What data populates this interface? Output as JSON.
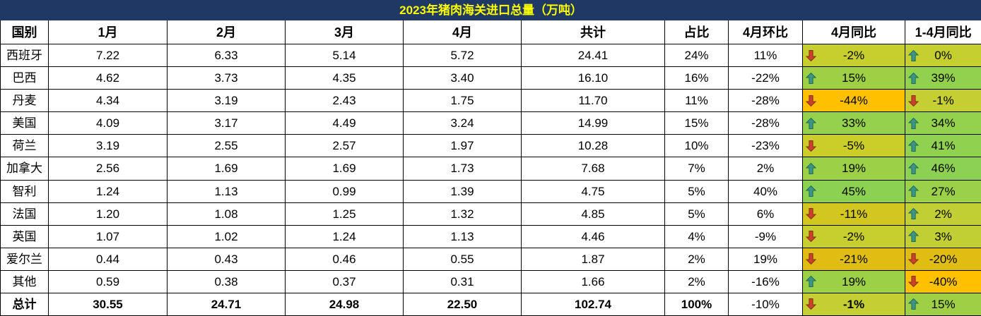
{
  "title": "2023年猪肉海关进口总量（万吨）",
  "colors": {
    "title_bg": "#1F3864",
    "title_fg": "#FFFF00",
    "up_arrow": "#3E9583",
    "up_arrow_outline": "#1E6B5C",
    "down_arrow": "#C8432C",
    "down_arrow_outline": "#8F2D1B",
    "scale_orange": "#FFC000",
    "scale_olive": "#C6CF30",
    "scale_green": "#8DD152"
  },
  "chart_data": {
    "type": "table",
    "columns": [
      "国别",
      "1月",
      "2月",
      "3月",
      "4月",
      "共计",
      "占比",
      "4月环比",
      "4月同比",
      "1-4月同比"
    ],
    "rows": [
      {
        "country": "西班牙",
        "m1": "7.22",
        "m2": "6.33",
        "m3": "5.14",
        "m4": "5.72",
        "total": "24.41",
        "share": "24%",
        "mom": "11%",
        "yoy_value": "-2%",
        "yoy_dir": "down",
        "yoy_bg": "#C7CF2E",
        "ytd_value": "0%",
        "ytd_dir": "up",
        "ytd_bg": "#C6CF30"
      },
      {
        "country": "巴西",
        "m1": "4.62",
        "m2": "3.73",
        "m3": "4.35",
        "m4": "3.40",
        "total": "16.10",
        "share": "16%",
        "mom": "-22%",
        "yoy_value": "15%",
        "yoy_dir": "up",
        "yoy_bg": "#9ECF45",
        "ytd_value": "39%",
        "ytd_dir": "up",
        "ytd_bg": "#91D14E"
      },
      {
        "country": "丹麦",
        "m1": "4.34",
        "m2": "3.19",
        "m3": "2.43",
        "m4": "1.75",
        "total": "11.70",
        "share": "11%",
        "mom": "-28%",
        "yoy_value": "-44%",
        "yoy_dir": "down",
        "yoy_bg": "#FFC000",
        "ytd_value": "-1%",
        "ytd_dir": "down",
        "ytd_bg": "#C5CF31"
      },
      {
        "country": "美国",
        "m1": "4.09",
        "m2": "3.17",
        "m3": "4.49",
        "m4": "3.24",
        "total": "14.99",
        "share": "15%",
        "mom": "-28%",
        "yoy_value": "33%",
        "yoy_dir": "up",
        "yoy_bg": "#95D14C",
        "ytd_value": "34%",
        "ytd_dir": "up",
        "ytd_bg": "#94D14D"
      },
      {
        "country": "荷兰",
        "m1": "3.19",
        "m2": "2.55",
        "m3": "2.57",
        "m4": "1.97",
        "total": "10.28",
        "share": "10%",
        "mom": "-23%",
        "yoy_value": "-5%",
        "yoy_dir": "down",
        "yoy_bg": "#CBCD29",
        "ytd_value": "41%",
        "ytd_dir": "up",
        "ytd_bg": "#90D150"
      },
      {
        "country": "加拿大",
        "m1": "2.56",
        "m2": "1.69",
        "m3": "1.69",
        "m4": "1.73",
        "total": "7.68",
        "share": "7%",
        "mom": "2%",
        "yoy_value": "19%",
        "yoy_dir": "up",
        "yoy_bg": "#9CD046",
        "ytd_value": "46%",
        "ytd_dir": "up",
        "ytd_bg": "#8CD153"
      },
      {
        "country": "智利",
        "m1": "1.24",
        "m2": "1.13",
        "m3": "0.99",
        "m4": "1.39",
        "total": "4.75",
        "share": "5%",
        "mom": "40%",
        "yoy_value": "45%",
        "yoy_dir": "up",
        "yoy_bg": "#8DD152",
        "ytd_value": "27%",
        "ytd_dir": "up",
        "ytd_bg": "#9AD148"
      },
      {
        "country": "法国",
        "m1": "1.20",
        "m2": "1.08",
        "m3": "1.25",
        "m4": "1.32",
        "total": "4.85",
        "share": "5%",
        "mom": "6%",
        "yoy_value": "-11%",
        "yoy_dir": "down",
        "yoy_bg": "#D3C71F",
        "ytd_value": "2%",
        "ytd_dir": "up",
        "ytd_bg": "#C2CF34"
      },
      {
        "country": "英国",
        "m1": "1.07",
        "m2": "1.02",
        "m3": "1.24",
        "m4": "1.13",
        "total": "4.46",
        "share": "4%",
        "mom": "-9%",
        "yoy_value": "-2%",
        "yoy_dir": "down",
        "yoy_bg": "#C7CF2E",
        "ytd_value": "3%",
        "ytd_dir": "up",
        "ytd_bg": "#C1CF35"
      },
      {
        "country": "爱尔兰",
        "m1": "0.44",
        "m2": "0.43",
        "m3": "0.46",
        "m4": "0.55",
        "total": "1.87",
        "share": "2%",
        "mom": "19%",
        "yoy_value": "-21%",
        "yoy_dir": "down",
        "yoy_bg": "#DFBD12",
        "ytd_value": "-20%",
        "ytd_dir": "down",
        "ytd_bg": "#DFBD12"
      },
      {
        "country": "其他",
        "m1": "0.59",
        "m2": "0.38",
        "m3": "0.37",
        "m4": "0.31",
        "total": "1.66",
        "share": "2%",
        "mom": "-16%",
        "yoy_value": "19%",
        "yoy_dir": "up",
        "yoy_bg": "#9CD046",
        "ytd_value": "-40%",
        "ytd_dir": "down",
        "ytd_bg": "#FFC000"
      }
    ],
    "total_row": {
      "country": "总计",
      "m1": "30.55",
      "m2": "24.71",
      "m3": "24.98",
      "m4": "22.50",
      "total": "102.74",
      "share": "100%",
      "mom": "-10%",
      "yoy_value": "-1%",
      "yoy_dir": "down",
      "yoy_bg": "#C5CF31",
      "ytd_value": "15%",
      "ytd_dir": "up",
      "ytd_bg": "#9ECF45"
    }
  }
}
